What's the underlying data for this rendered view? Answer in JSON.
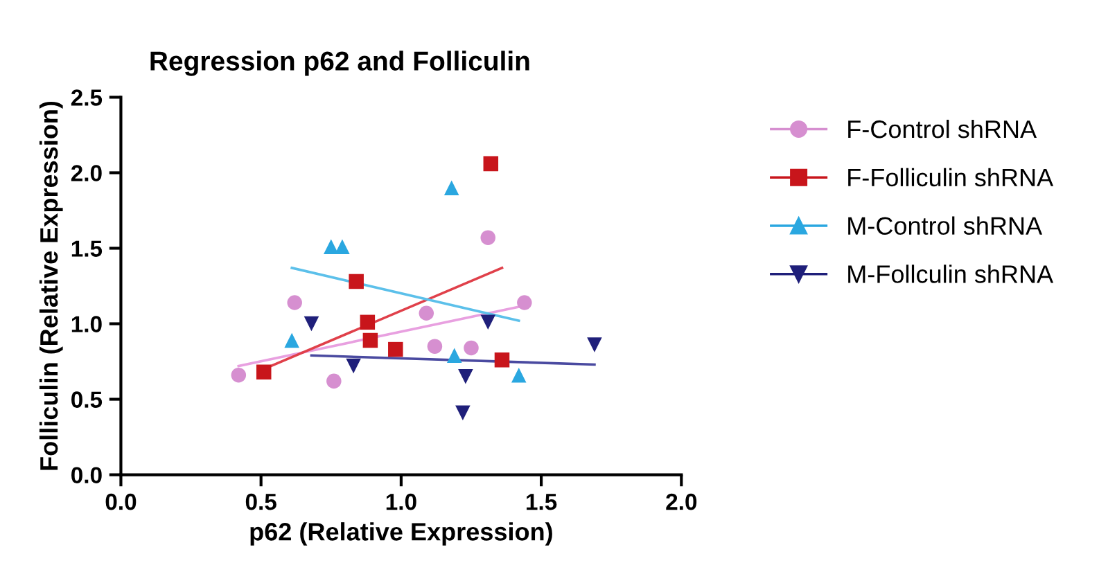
{
  "chart_data": {
    "type": "scatter",
    "title": "Regression p62 and Folliculin",
    "xlabel": "p62 (Relative Expression)",
    "ylabel": "Folliculin (Relative Expression)",
    "xlim": [
      0,
      2
    ],
    "ylim": [
      0,
      2.5
    ],
    "xticks": [
      {
        "value": 0,
        "label": "0.0"
      },
      {
        "value": 0.5,
        "label": "0.5"
      },
      {
        "value": 1,
        "label": "1.0"
      },
      {
        "value": 1.5,
        "label": "1.5"
      },
      {
        "value": 2,
        "label": "2.0"
      }
    ],
    "yticks": [
      {
        "value": 0,
        "label": "0.0"
      },
      {
        "value": 0.5,
        "label": "0.5"
      },
      {
        "value": 1,
        "label": "1.0"
      },
      {
        "value": 1.5,
        "label": "1.5"
      },
      {
        "value": 2,
        "label": "2.0"
      },
      {
        "value": 2.5,
        "label": "2.5"
      }
    ],
    "grid": false,
    "legend": "right",
    "series": [
      {
        "name": "F-Control shRNA",
        "color": "#d68fd0",
        "marker": "circle",
        "x": [
          0.42,
          0.62,
          0.76,
          1.09,
          1.12,
          1.25,
          1.31,
          1.44
        ],
        "values": [
          0.66,
          1.14,
          0.62,
          1.07,
          0.85,
          0.84,
          1.57,
          1.14
        ]
      },
      {
        "name": "F-Folliculin shRNA",
        "color": "#c8151b",
        "marker": "square",
        "x": [
          0.51,
          0.84,
          0.88,
          0.89,
          0.98,
          1.32,
          1.36
        ],
        "values": [
          0.68,
          1.28,
          1.01,
          0.89,
          0.83,
          2.06,
          0.76
        ]
      },
      {
        "name": "M-Control shRNA",
        "color": "#2aa7e0",
        "marker": "triangle",
        "x": [
          0.61,
          0.75,
          0.79,
          1.18,
          1.19,
          1.42
        ],
        "values": [
          0.89,
          1.51,
          1.51,
          1.9,
          0.79,
          0.66
        ]
      },
      {
        "name": "M-Follculin shRNA",
        "color": "#1f1f7a",
        "marker": "triangle_down",
        "x": [
          0.68,
          0.83,
          1.22,
          1.23,
          1.31,
          1.69
        ],
        "values": [
          1.0,
          0.72,
          0.41,
          0.65,
          1.01,
          0.86
        ]
      },
      {
        "type": "line",
        "color": "#e8a0e0",
        "x": [
          0.42,
          1.44
        ],
        "values": [
          0.72,
          1.12
        ]
      },
      {
        "type": "line",
        "color": "#e0404a",
        "x": [
          0.51,
          1.36
        ],
        "values": [
          0.7,
          1.37
        ]
      },
      {
        "type": "line",
        "color": "#5cc0ea",
        "x": [
          0.61,
          1.42
        ],
        "values": [
          1.37,
          1.02
        ]
      },
      {
        "type": "line",
        "color": "#4a4aa0",
        "x": [
          0.68,
          1.69
        ],
        "values": [
          0.79,
          0.73
        ]
      }
    ]
  }
}
